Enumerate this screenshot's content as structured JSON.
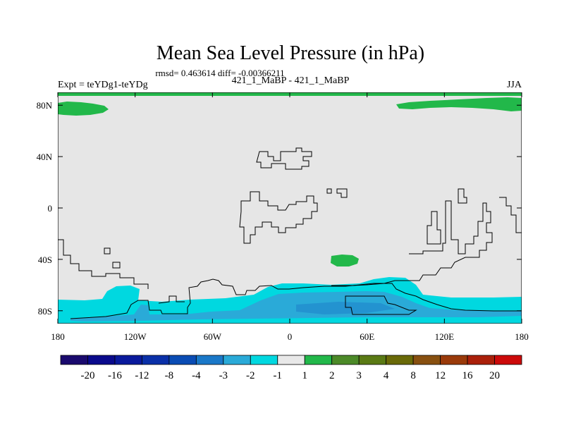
{
  "chart_data": {
    "type": "contour-map",
    "title": "Mean Sea Level Pressure (in hPa)",
    "stats_line": "rmsd= 0.463614 diff= -0.00366211",
    "left_label": "Expt = teYDg1-teYDg",
    "center_label": "421_1_MaBP - 421_1_MaBP",
    "right_label": "JJA",
    "x_ticks": [
      {
        "label": "180",
        "lon": -180
      },
      {
        "label": "120W",
        "lon": -120
      },
      {
        "label": "60W",
        "lon": -60
      },
      {
        "label": "0",
        "lon": 0
      },
      {
        "label": "60E",
        "lon": 60
      },
      {
        "label": "120E",
        "lon": 120
      },
      {
        "label": "180",
        "lon": 180
      }
    ],
    "y_ticks": [
      {
        "label": "80N",
        "lat": 80
      },
      {
        "label": "40N",
        "lat": 40
      },
      {
        "label": "0",
        "lat": 0
      },
      {
        "label": "40S",
        "lat": -40
      },
      {
        "label": "80S",
        "lat": -80
      }
    ],
    "lon_range": [
      -180,
      180
    ],
    "lat_range": [
      -90,
      90
    ],
    "contour_levels": [
      -20,
      -16,
      -12,
      -8,
      -4,
      -3,
      -2,
      -1,
      1,
      2,
      3,
      4,
      8,
      12,
      16,
      20
    ],
    "colorbar_colors": [
      "#1a0a6e",
      "#0a0a8c",
      "#0a1a9c",
      "#0a30a8",
      "#0a4cb4",
      "#1a78c8",
      "#2aaad8",
      "#00d8e0",
      "#e8e8e8",
      "#22b84a",
      "#4c8a28",
      "#5a7a14",
      "#6a6a08",
      "#885010",
      "#9a3a0a",
      "#aa200a",
      "#cc0a0a"
    ],
    "background_color": "#e6e6e6",
    "regions": [
      {
        "name": "arctic-positive-west",
        "color": "#22b84a",
        "value_range": [
          1,
          2
        ]
      },
      {
        "name": "arctic-positive-east",
        "color": "#22b84a",
        "value_range": [
          1,
          2
        ]
      },
      {
        "name": "south-atlantic-positive",
        "color": "#22b84a",
        "value_range": [
          1,
          2
        ]
      },
      {
        "name": "southern-ocean-negative",
        "color": "#00d8e0",
        "value_range": [
          -2,
          -1
        ]
      },
      {
        "name": "antarctic-negative-core",
        "color": "#2aaad8",
        "value_range": [
          -3,
          -2
        ]
      }
    ]
  }
}
